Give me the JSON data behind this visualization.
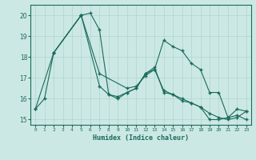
{
  "xlabel": "Humidex (Indice chaleur)",
  "bg_color": "#cce8e5",
  "line_color": "#1a6b5a",
  "grid_color": "#aed4d0",
  "xlim": [
    -0.5,
    23.5
  ],
  "ylim": [
    14.75,
    20.5
  ],
  "yticks": [
    15,
    16,
    17,
    18,
    19,
    20
  ],
  "xticks": [
    0,
    1,
    2,
    3,
    4,
    5,
    6,
    7,
    8,
    9,
    10,
    11,
    12,
    13,
    14,
    15,
    16,
    17,
    18,
    19,
    20,
    21,
    22,
    23
  ],
  "series": [
    {
      "x": [
        0,
        1,
        2,
        5,
        6,
        7,
        8,
        9,
        10,
        11,
        12,
        13,
        14,
        15,
        16,
        17,
        18,
        19,
        20,
        21,
        22,
        23
      ],
      "y": [
        15.5,
        16.0,
        18.2,
        20.0,
        20.1,
        19.3,
        16.2,
        16.0,
        16.3,
        16.5,
        17.2,
        17.4,
        18.8,
        18.5,
        18.3,
        17.7,
        17.4,
        16.3,
        16.3,
        15.1,
        15.2,
        15.0
      ]
    },
    {
      "x": [
        2,
        5,
        7,
        10,
        11,
        12,
        13,
        14,
        15,
        16,
        17,
        18,
        19,
        20,
        21,
        22,
        23
      ],
      "y": [
        18.2,
        20.0,
        17.2,
        16.5,
        16.6,
        17.1,
        17.4,
        16.4,
        16.2,
        16.0,
        15.8,
        15.6,
        15.3,
        15.1,
        15.0,
        15.1,
        15.4
      ]
    },
    {
      "x": [
        0,
        2,
        5,
        7,
        8,
        9,
        10,
        11,
        12,
        13,
        14,
        15,
        16,
        17,
        18,
        19,
        20,
        21,
        22,
        23
      ],
      "y": [
        15.5,
        18.2,
        20.0,
        16.6,
        16.2,
        16.1,
        16.3,
        16.5,
        17.2,
        17.5,
        16.3,
        16.2,
        15.9,
        15.8,
        15.6,
        15.0,
        15.0,
        15.1,
        15.5,
        15.4
      ]
    }
  ]
}
